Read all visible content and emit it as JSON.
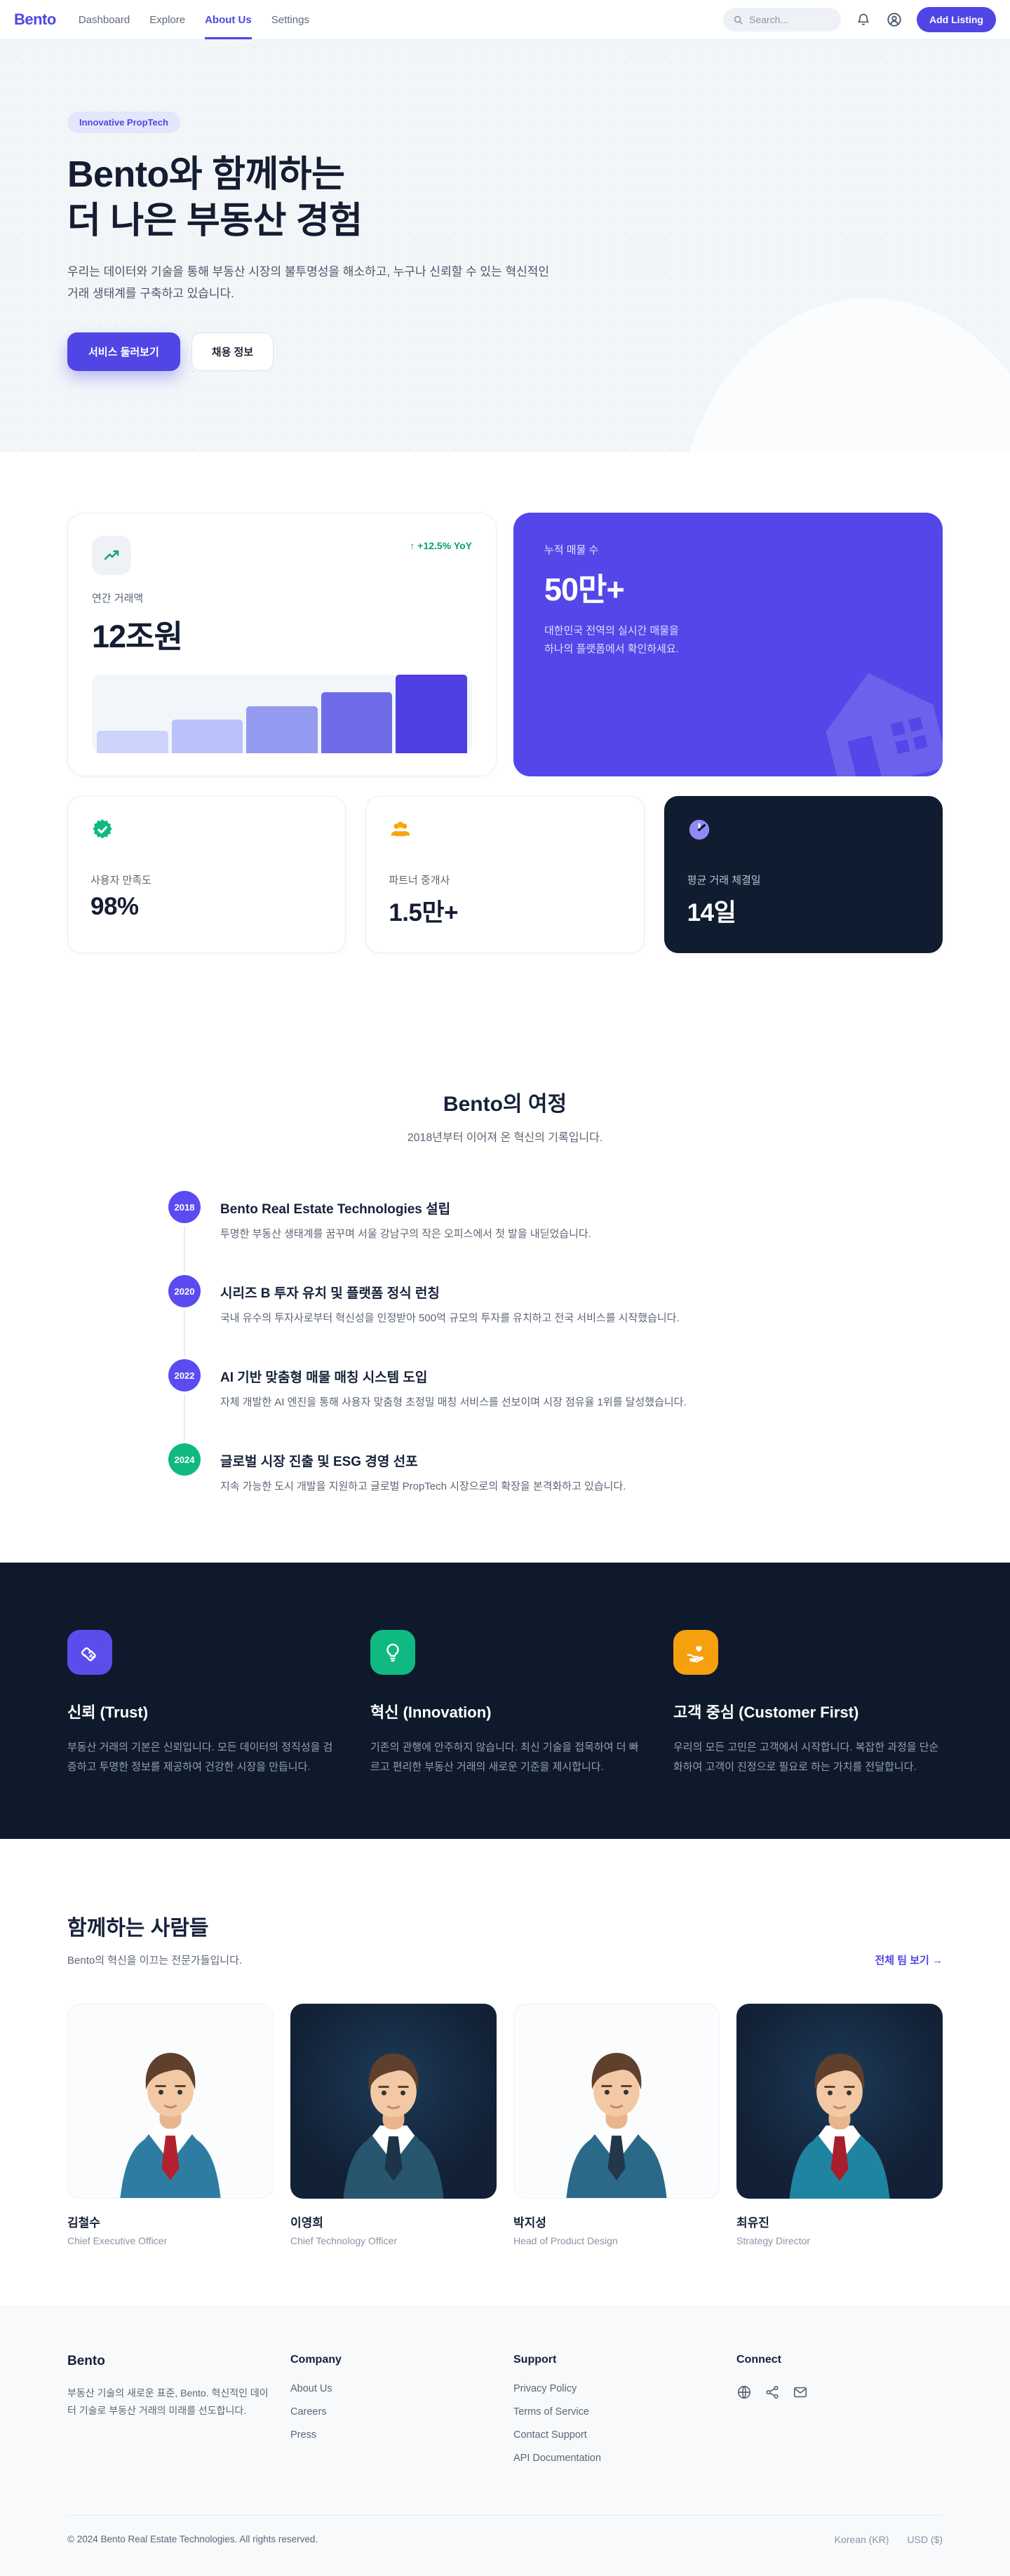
{
  "header": {
    "logo": "Bento",
    "nav": [
      {
        "label": "Dashboard",
        "active": false
      },
      {
        "label": "Explore",
        "active": false
      },
      {
        "label": "About Us",
        "active": true
      },
      {
        "label": "Settings",
        "active": false
      }
    ],
    "search_placeholder": "Search...",
    "add_listing_label": "Add Listing"
  },
  "hero": {
    "badge": "Innovative PropTech",
    "title_line1": "Bento와 함께하는",
    "title_line2": "더 나은 부동산 경험",
    "description_line1": "우리는 데이터와 기술을 통해 부동산 시장의 불투명성을 해소하고, 누구나 신뢰할 수 있는 혁신적인",
    "description_line2": "거래 생태계를 구축하고 있습니다.",
    "primary_cta": "서비스 둘러보기",
    "secondary_cta": "채용 정보"
  },
  "stats": {
    "annual": {
      "yoy": "↑ +12.5% YoY",
      "yoy_color": "#0a9e6e",
      "label": "연간 거래액",
      "value": "12조원"
    },
    "chart_data": {
      "type": "bar",
      "description": "연간 거래액 성장 추이 - 5개 막대가 좌에서 우로 증가",
      "values_percent": [
        29,
        43,
        60,
        78,
        100
      ],
      "colors": [
        "#ccd4fb",
        "#b9c2f9",
        "#959af1",
        "#6f6cea",
        "#4d3fe1"
      ],
      "axes_labeled": false
    },
    "listings": {
      "label": "누적 매물 수",
      "value": "50만+",
      "description_line1": "대한민국 전역의 실시간 매물을",
      "description_line2": "하나의 플랫폼에서 확인하세요.",
      "card_color": "#5347e9"
    },
    "satisfaction": {
      "label": "사용자 만족도",
      "value": "98%"
    },
    "partners": {
      "label": "파트너 중개사",
      "value": "1.5만+"
    },
    "closing": {
      "label": "평균 거래 체결일",
      "value": "14일"
    }
  },
  "journey": {
    "title": "Bento의 여정",
    "subtitle": "2018년부터 이어져 온 혁신의 기록입니다.",
    "items": [
      {
        "year": "2018",
        "color": "#5a4cf0",
        "title": "Bento Real Estate Technologies 설립",
        "description": "투명한 부동산 생태계를 꿈꾸며 서울 강남구의 작은 오피스에서 첫 발을 내딛었습니다."
      },
      {
        "year": "2020",
        "color": "#5a4cf0",
        "title": "시리즈 B 투자 유치 및 플랫폼 정식 런칭",
        "description": "국내 유수의 투자사로부터 혁신성을 인정받아 500억 규모의 투자를 유치하고 전국 서비스를 시작했습니다."
      },
      {
        "year": "2022",
        "color": "#5a4cf0",
        "title": "AI 기반 맞춤형 매물 매칭 시스템 도입",
        "description": "자체 개발한 AI 엔진을 통해 사용자 맞춤형 초정밀 매칭 서비스를 선보이며 시장 점유율 1위를 달성했습니다."
      },
      {
        "year": "2024",
        "color": "#10b981",
        "title": "글로벌 시장 진출 및 ESG 경영 선포",
        "description": "지속 가능한 도시 개발을 지원하고 글로벌 PropTech 시장으로의 확장을 본격화하고 있습니다."
      }
    ]
  },
  "values": {
    "items": [
      {
        "icon": "handshake-icon",
        "icon_bg": "#5b4deb",
        "title": "신뢰 (Trust)",
        "description": "부동산 거래의 기본은 신뢰입니다. 모든 데이터의 정직성을 검증하고 투명한 정보를 제공하여 건강한 시장을 만듭니다."
      },
      {
        "icon": "lightbulb-icon",
        "icon_bg": "#10b981",
        "title": "혁신 (Innovation)",
        "description": "기존의 관행에 안주하지 않습니다. 최신 기술을 접목하여 더 빠르고 편리한 부동산 거래의 새로운 기준을 제시합니다."
      },
      {
        "icon": "hand-heart-icon",
        "icon_bg": "#f5a00c",
        "title": "고객 중심 (Customer First)",
        "description": "우리의 모든 고민은 고객에서 시작합니다. 복잡한 과정을 단순화하여 고객이 진정으로 필요로 하는 가치를 전달합니다."
      }
    ]
  },
  "team": {
    "title": "함께하는 사람들",
    "subtitle": "Bento의 혁신을 이끄는 전문가들입니다.",
    "view_all": "전체 팀 보기 →",
    "members": [
      {
        "name": "김철수",
        "role": "Chief Executive Officer",
        "avatar_theme": "light",
        "suit_color": "#2f7ca3",
        "tie_color": "#b3202f"
      },
      {
        "name": "이영희",
        "role": "Chief Technology Officer",
        "avatar_theme": "dark",
        "suit_color": "#27566e",
        "tie_color": "#1d3347"
      },
      {
        "name": "박지성",
        "role": "Head of Product Design",
        "avatar_theme": "light",
        "suit_color": "#2a6a88",
        "tie_color": "#22384a"
      },
      {
        "name": "최유진",
        "role": "Strategy Director",
        "avatar_theme": "dark",
        "suit_color": "#1f84a0",
        "tie_color": "#a91e2c"
      }
    ]
  },
  "footer": {
    "brand": "Bento",
    "description_line1": "부동산 기술의 새로운 표준, Bento.",
    "description_line2": "혁신적인 데이터 기술로 부동산 거래의 미래를 선도합니다.",
    "company": {
      "heading": "Company",
      "links": [
        "About Us",
        "Careers",
        "Press"
      ]
    },
    "support": {
      "heading": "Support",
      "links": [
        "Privacy Policy",
        "Terms of Service",
        "Contact Support",
        "API Documentation"
      ]
    },
    "connect": {
      "heading": "Connect",
      "icons": [
        "globe-icon",
        "share-icon",
        "mail-icon"
      ]
    },
    "copyright": "© 2024 Bento Real Estate Technologies. All rights reserved.",
    "locale": "Korean (KR)",
    "currency": "USD ($)"
  }
}
